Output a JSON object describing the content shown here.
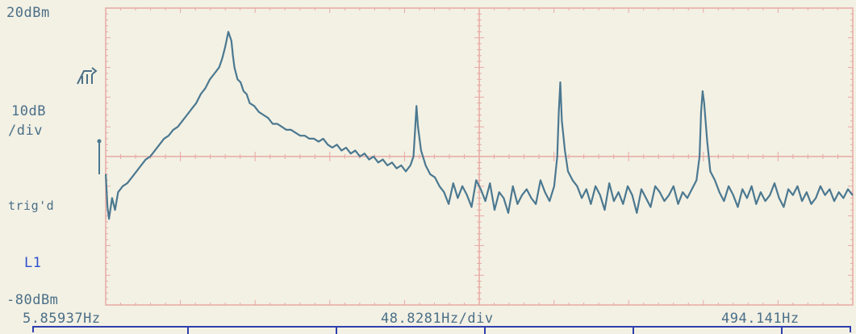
{
  "labels": {
    "top_ref": "20dBm",
    "scale_line1": "10dB",
    "scale_line2": "/div",
    "trigger_status": "trig'd",
    "marker": "L1",
    "bottom_ref": "-80dBm",
    "x_start": "5.85937Hz",
    "x_div": "48.8281Hz/div",
    "x_end": "494.141Hz"
  },
  "chart_data": {
    "type": "line",
    "title": "",
    "xlabel": "",
    "ylabel": "",
    "x_unit": "Hz",
    "y_unit": "dBm",
    "xlim": [
      5.85937,
      494.141
    ],
    "ylim": [
      -80,
      20
    ],
    "x_divisions": 10,
    "y_divisions": 10,
    "grid": true,
    "line_color": "#4b7890",
    "grid_color": "#e7a9a4",
    "series": [
      {
        "x": [
          5.9,
          7,
          8,
          10,
          12,
          14,
          17,
          20,
          23,
          26,
          29,
          32,
          35,
          38,
          41,
          44,
          47,
          50,
          53,
          56,
          59,
          62,
          65,
          68,
          71,
          74,
          77,
          80,
          82,
          84,
          86,
          88,
          89,
          90,
          91,
          92,
          94,
          96,
          98,
          100,
          103,
          106,
          109,
          112,
          115,
          118,
          121,
          124,
          127,
          130,
          133,
          136,
          139,
          142,
          145,
          148,
          151,
          154,
          157,
          160,
          163,
          166,
          169,
          172,
          175,
          178,
          181,
          184,
          187,
          190,
          193,
          196,
          199,
          202,
          205,
          207,
          208,
          209,
          210,
          212,
          215,
          218,
          221,
          224,
          227,
          230,
          233,
          236,
          239,
          242,
          245,
          248,
          251,
          254,
          257,
          260,
          263,
          266,
          269,
          272,
          275,
          278,
          281,
          284,
          287,
          290,
          293,
          296,
          299,
          301,
          302,
          303,
          304,
          306,
          308,
          311,
          314,
          317,
          320,
          323,
          326,
          329,
          332,
          335,
          338,
          341,
          344,
          347,
          350,
          353,
          356,
          359,
          362,
          365,
          368,
          371,
          374,
          377,
          380,
          383,
          386,
          389,
          392,
          394,
          395,
          396,
          397,
          399,
          401,
          404,
          407,
          410,
          413,
          416,
          419,
          422,
          425,
          428,
          431,
          434,
          437,
          440,
          443,
          446,
          449,
          452,
          455,
          458,
          461,
          464,
          467,
          470,
          473,
          476,
          479,
          482,
          485,
          488,
          491,
          494
        ],
        "values": [
          -36,
          -47,
          -51,
          -44,
          -48,
          -42,
          -40,
          -39,
          -37,
          -35,
          -33,
          -31,
          -30,
          -28,
          -26,
          -24,
          -23,
          -21,
          -20,
          -18,
          -16,
          -14,
          -12,
          -9,
          -7,
          -4,
          -2,
          0,
          3,
          7,
          12,
          9,
          4,
          0,
          -2,
          -4,
          -5,
          -8,
          -9,
          -12,
          -13,
          -15,
          -16,
          -17,
          -19,
          -19,
          -20,
          -21,
          -21,
          -22,
          -23,
          -23,
          -24,
          -24,
          -25,
          -24,
          -26,
          -27,
          -26,
          -28,
          -27,
          -29,
          -28,
          -30,
          -29,
          -31,
          -30,
          -32,
          -31,
          -33,
          -32,
          -34,
          -33,
          -35,
          -33,
          -30,
          -22,
          -13,
          -20,
          -28,
          -33,
          -36,
          -37,
          -40,
          -42,
          -46,
          -39,
          -44,
          -40,
          -43,
          -47,
          -38,
          -41,
          -45,
          -39,
          -48,
          -42,
          -44,
          -49,
          -40,
          -46,
          -43,
          -41,
          -44,
          -46,
          -38,
          -42,
          -45,
          -40,
          -30,
          -15,
          -5,
          -18,
          -28,
          -35,
          -38,
          -40,
          -44,
          -41,
          -46,
          -40,
          -43,
          -48,
          -39,
          -45,
          -42,
          -46,
          -40,
          -43,
          -49,
          -41,
          -44,
          -47,
          -40,
          -42,
          -45,
          -43,
          -40,
          -46,
          -42,
          -44,
          -41,
          -38,
          -30,
          -15,
          -8,
          -12,
          -25,
          -35,
          -38,
          -42,
          -45,
          -40,
          -43,
          -47,
          -41,
          -44,
          -40,
          -46,
          -42,
          -45,
          -43,
          -39,
          -44,
          -47,
          -41,
          -43,
          -40,
          -45,
          -42,
          -46,
          -44,
          -40,
          -43,
          -41,
          -45,
          -42,
          -44,
          -41,
          -43
        ]
      }
    ]
  }
}
